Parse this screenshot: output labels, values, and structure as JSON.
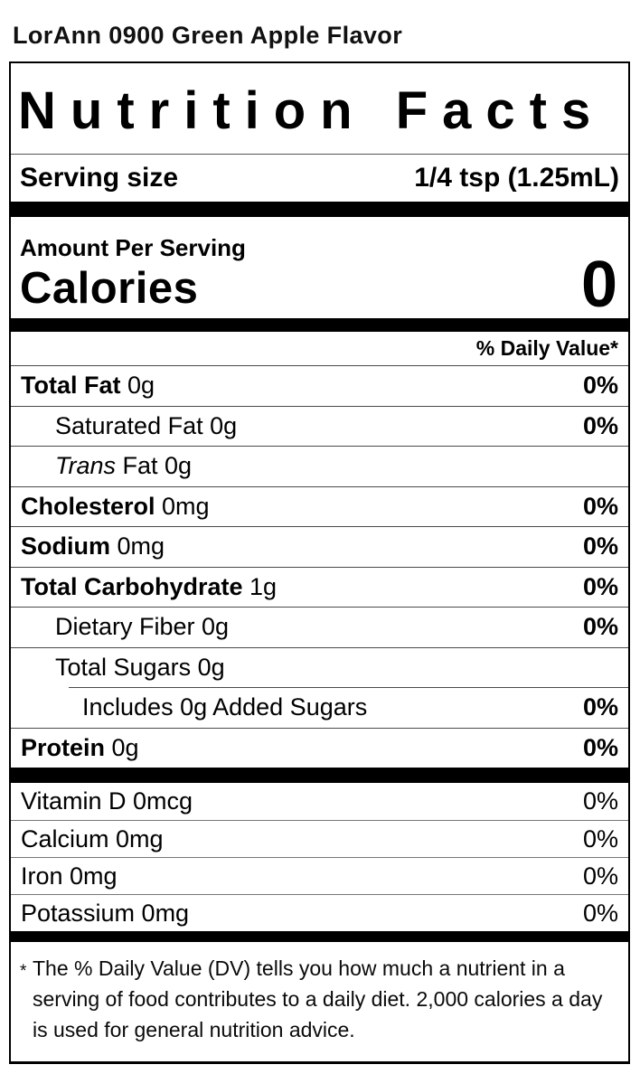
{
  "page": {
    "title": "LorAnn 0900 Green Apple Flavor"
  },
  "label": {
    "header": "Nutrition Facts",
    "serving": {
      "label": "Serving size",
      "value": "1/4 tsp (1.25mL)"
    },
    "amount_per_serving": "Amount Per Serving",
    "calories": {
      "label": "Calories",
      "value": "0"
    },
    "daily_value_header": "% Daily Value*",
    "main_rows": [
      {
        "bold": "Total Fat",
        "italic": "",
        "rest": " 0g",
        "dv": "0%"
      },
      {
        "bold": "",
        "italic": "",
        "rest": "Saturated Fat 0g",
        "dv": "0%"
      },
      {
        "bold": "",
        "italic": "Trans",
        "rest": " Fat 0g",
        "dv": ""
      },
      {
        "bold": "Cholesterol",
        "italic": "",
        "rest": " 0mg",
        "dv": "0%"
      },
      {
        "bold": "Sodium",
        "italic": "",
        "rest": " 0mg",
        "dv": "0%"
      },
      {
        "bold": "Total Carbohydrate",
        "italic": "",
        "rest": " 1g",
        "dv": "0%"
      },
      {
        "bold": "",
        "italic": "",
        "rest": "Dietary Fiber 0g",
        "dv": "0%"
      },
      {
        "bold": "",
        "italic": "",
        "rest": "Total Sugars 0g",
        "dv": ""
      },
      {
        "bold": "",
        "italic": "",
        "rest": "Includes 0g Added Sugars",
        "dv": "0%"
      },
      {
        "bold": "Protein",
        "italic": "",
        "rest": " 0g",
        "dv": "0%"
      }
    ],
    "micro_rows": [
      {
        "label": "Vitamin D 0mcg",
        "dv": "0%"
      },
      {
        "label": "Calcium 0mg",
        "dv": "0%"
      },
      {
        "label": "Iron 0mg",
        "dv": "0%"
      },
      {
        "label": "Potassium 0mg",
        "dv": "0%"
      }
    ],
    "footnote_marker": "*",
    "footnote": "The % Daily Value (DV) tells you how much a nutrient in a serving of food contributes to a daily diet. 2,000 calories a day is used for general nutrition advice."
  },
  "colors": {
    "text": "#000000",
    "background": "#ffffff",
    "rule": "#4a4a4a"
  }
}
